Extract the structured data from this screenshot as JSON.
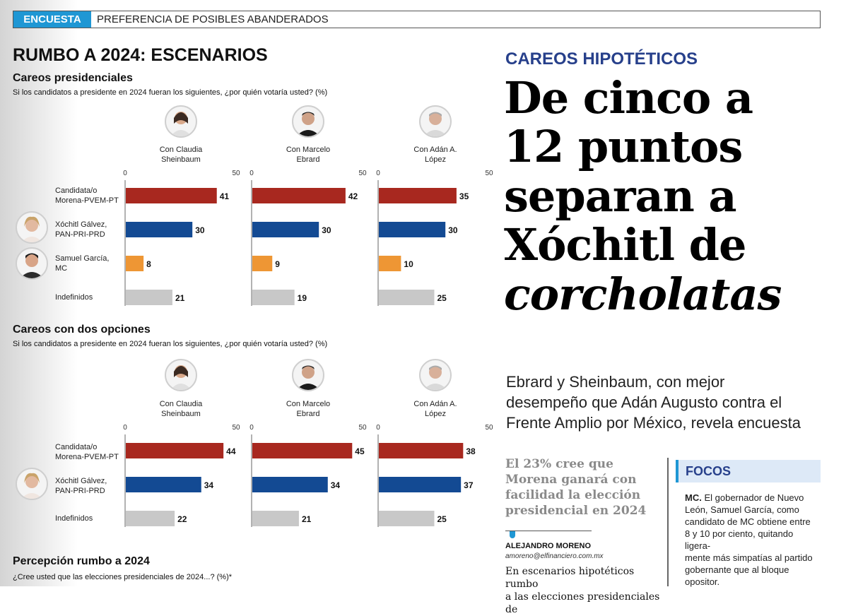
{
  "banner": {
    "tag": "ENCUESTA",
    "text": "PREFERENCIA DE POSIBLES ABANDERADOS"
  },
  "left": {
    "title": "RUMBO A 2024: ESCENARIOS",
    "section1": {
      "title": "Careos presidenciales",
      "question": "Si los candidatos a presidente en 2024 fueran los siguientes, ¿por quién votaría usted?  (%)"
    },
    "section2": {
      "title": "Careos con dos opciones",
      "question": "Si los candidatos a presidente en 2024 fueran los siguientes, ¿por quién votaría usted?  (%)"
    },
    "section3": {
      "title": "Percepción rumbo a 2024",
      "question": "¿Cree usted que las elecciones presidenciales de 2024...?  (%)*"
    },
    "column_titles": [
      [
        "Con Claudia",
        "Sheinbaum"
      ],
      [
        "Con Marcelo",
        "Ebrard"
      ],
      [
        "Con Adán A.",
        "López"
      ]
    ],
    "rows1": [
      [
        "Candidata/o",
        "Morena-PVEM-PT"
      ],
      [
        "Xóchitl Gálvez,",
        "PAN-PRI-PRD"
      ],
      [
        "Samuel García,",
        "MC"
      ],
      [
        "Indefinidos"
      ]
    ],
    "rows2": [
      [
        "Candidata/o",
        "Morena-PVEM-PT"
      ],
      [
        "Xóchitl Gálvez,",
        "PAN-PRI-PRD"
      ],
      [
        "Indefinidos"
      ]
    ]
  },
  "chart_data": [
    {
      "type": "bar",
      "orientation": "horizontal",
      "title": "Careos presidenciales",
      "axis_ticks": [
        "0",
        "50"
      ],
      "xlim": [
        0,
        50
      ],
      "categories": [
        "Candidata/o Morena-PVEM-PT",
        "Xóchitl Gálvez, PAN-PRI-PRD",
        "Samuel García, MC",
        "Indefinidos"
      ],
      "series": [
        {
          "name": "Con Claudia Sheinbaum",
          "values": [
            41,
            30,
            8,
            21
          ]
        },
        {
          "name": "Con Marcelo Ebrard",
          "values": [
            42,
            30,
            9,
            19
          ]
        },
        {
          "name": "Con Adán A. López",
          "values": [
            35,
            30,
            10,
            25
          ]
        }
      ],
      "colors": [
        "#a8281f",
        "#134a93",
        "#ee9634",
        "#c8c8c8"
      ]
    },
    {
      "type": "bar",
      "orientation": "horizontal",
      "title": "Careos con dos opciones",
      "axis_ticks": [
        "0",
        "50"
      ],
      "xlim": [
        0,
        50
      ],
      "categories": [
        "Candidata/o Morena-PVEM-PT",
        "Xóchitl Gálvez, PAN-PRI-PRD",
        "Indefinidos"
      ],
      "series": [
        {
          "name": "Con Claudia Sheinbaum",
          "values": [
            44,
            34,
            22
          ]
        },
        {
          "name": "Con Marcelo Ebrard",
          "values": [
            45,
            34,
            21
          ]
        },
        {
          "name": "Con Adán A. López",
          "values": [
            38,
            37,
            25
          ]
        }
      ],
      "colors": [
        "#a8281f",
        "#134a93",
        "#c8c8c8"
      ]
    }
  ],
  "right": {
    "kicker": "CAREOS HIPOTÉTICOS",
    "headline": [
      "De cinco a",
      "12 puntos",
      "separan a",
      "Xóchitl de"
    ],
    "headline_italic": "corcholatas",
    "subhead": [
      "Ebrard y Sheinbaum, con mejor",
      "desempeño que Adán Augusto contra el",
      "Frente Amplio por México, revela encuesta"
    ],
    "pullquote": [
      "El 23% cree que",
      "Morena ganará con",
      "facilidad la elección",
      "presidencial en 2024"
    ],
    "author": "ALEJANDRO MORENO",
    "email": "amoreno@elfinanciero.com.mx",
    "body": [
      "En escenarios hipotéticos rumbo",
      "a las elecciones presidenciales de"
    ],
    "focos": {
      "title": "FOCOS",
      "lead": "MC.",
      "lines": [
        " El gobernador de Nuevo",
        "León, Samuel García, como",
        "candidato de MC obtiene entre",
        "8 y 10 por ciento, quitando ligera-",
        "mente más simpatías al partido",
        "gobernante que al bloque",
        "opositor."
      ]
    }
  }
}
